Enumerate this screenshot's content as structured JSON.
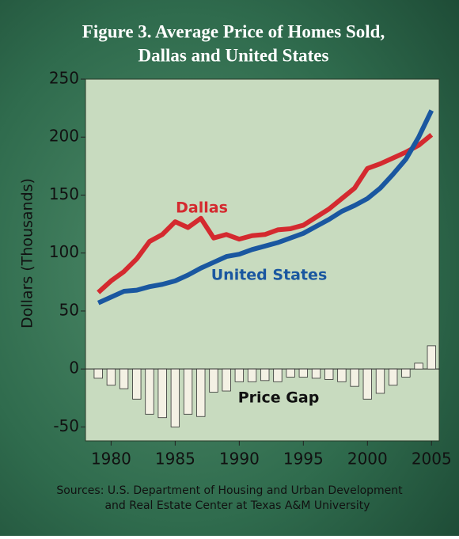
{
  "chart_data": {
    "type": "line",
    "title_lines": [
      "Figure 3. Average Price of Homes Sold,",
      "Dallas and United States"
    ],
    "y_label": "Dollars (Thousands)",
    "x": [
      1979,
      1980,
      1981,
      1982,
      1983,
      1984,
      1985,
      1986,
      1987,
      1988,
      1989,
      1990,
      1991,
      1992,
      1993,
      1994,
      1995,
      1996,
      1997,
      1998,
      1999,
      2000,
      2001,
      2002,
      2003,
      2004,
      2005
    ],
    "series": [
      {
        "name": "Dallas",
        "type": "line",
        "color": "#d42a2f",
        "values": [
          66,
          76,
          84,
          95,
          110,
          116,
          127,
          122,
          130,
          113,
          116,
          112,
          115,
          116,
          120,
          121,
          124,
          131,
          138,
          147,
          156,
          173,
          177,
          182,
          187,
          193,
          202
        ]
      },
      {
        "name": "United States",
        "type": "line",
        "color": "#1a57a0",
        "values": [
          57,
          62,
          67,
          68,
          71,
          73,
          76,
          81,
          87,
          92,
          97,
          99,
          103,
          106,
          109,
          113,
          117,
          123,
          129,
          136,
          141,
          147,
          156,
          168,
          181,
          200,
          223
        ]
      },
      {
        "name": "Price Gap",
        "type": "bar",
        "color": "#f4f1e4",
        "values": [
          -8,
          -14,
          -17,
          -26,
          -39,
          -42,
          -50,
          -39,
          -41,
          -20,
          -19,
          -11,
          -11,
          -10,
          -11,
          -7,
          -7,
          -8,
          -9,
          -11,
          -15,
          -26,
          -21,
          -14,
          -7,
          5,
          20
        ]
      }
    ],
    "xlim": [
      1978,
      2005.6
    ],
    "xticks": [
      1980,
      1985,
      1990,
      1995,
      2000,
      2005
    ],
    "ylim": [
      -62,
      250
    ],
    "yticks": [
      -50,
      0,
      50,
      100,
      150,
      200,
      250
    ],
    "source_lines": [
      "Sources: U.S. Department of Housing and Urban Development",
      "and Real Estate Center at Texas A&M University"
    ]
  }
}
